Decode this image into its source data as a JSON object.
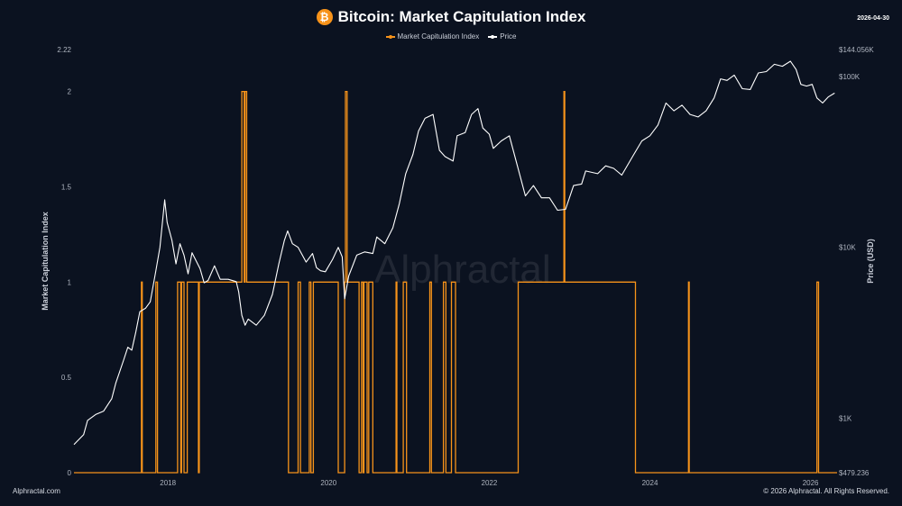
{
  "header": {
    "title": "Bitcoin: Market Capitulation Index",
    "icon": "bitcoin-icon",
    "icon_glyph": "₿",
    "date": "2026-04-30"
  },
  "legend": {
    "items": [
      {
        "label": "Market Capitulation Index",
        "color": "#f7931a"
      },
      {
        "label": "Price",
        "color": "#ffffff"
      }
    ]
  },
  "footer": {
    "left": "Alphractal.com",
    "right": "© 2026 Alphractal. All Rights Reserved."
  },
  "watermark": "Alphractal",
  "colors": {
    "background": "#0b1220",
    "index": "#f7931a",
    "price": "#ffffff"
  },
  "chart_data": {
    "type": "line",
    "title": "Bitcoin: Market Capitulation Index",
    "ylabel_left": "Market Capitulation Index",
    "ylabel_right": "Price (USD)",
    "x_ticks": [
      "2018",
      "2020",
      "2022",
      "2024",
      "2026"
    ],
    "x_range": [
      2016.83,
      2026.33
    ],
    "ylim_left": [
      0,
      2.22
    ],
    "y_ticks_left": [
      "0",
      "0.5",
      "1",
      "1.5",
      "2",
      "2.22"
    ],
    "ylim_right": [
      479.236,
      144056
    ],
    "y_scale_right": "log",
    "y_ticks_right": [
      "$479.236",
      "$1K",
      "$10K",
      "$100K",
      "$144.056K"
    ],
    "grid": false,
    "legend_position": "top-center",
    "series": [
      {
        "name": "Market Capitulation Index",
        "color": "#f7931a",
        "step": true,
        "points": [
          [
            2016.83,
            0
          ],
          [
            2017.67,
            0
          ],
          [
            2017.67,
            1
          ],
          [
            2017.68,
            1
          ],
          [
            2017.68,
            0
          ],
          [
            2017.85,
            0
          ],
          [
            2017.85,
            1
          ],
          [
            2017.87,
            1
          ],
          [
            2017.87,
            0
          ],
          [
            2018.12,
            0
          ],
          [
            2018.12,
            1
          ],
          [
            2018.16,
            1
          ],
          [
            2018.16,
            0
          ],
          [
            2018.17,
            0
          ],
          [
            2018.17,
            1
          ],
          [
            2018.2,
            1
          ],
          [
            2018.2,
            0
          ],
          [
            2018.24,
            0
          ],
          [
            2018.24,
            1
          ],
          [
            2018.38,
            1
          ],
          [
            2018.38,
            0
          ],
          [
            2018.39,
            0
          ],
          [
            2018.39,
            1
          ],
          [
            2018.92,
            1
          ],
          [
            2018.92,
            2
          ],
          [
            2018.95,
            2
          ],
          [
            2018.95,
            1
          ],
          [
            2018.96,
            1
          ],
          [
            2018.96,
            2
          ],
          [
            2018.98,
            2
          ],
          [
            2018.98,
            1
          ],
          [
            2019.5,
            1
          ],
          [
            2019.5,
            0
          ],
          [
            2019.62,
            0
          ],
          [
            2019.62,
            1
          ],
          [
            2019.65,
            1
          ],
          [
            2019.65,
            0
          ],
          [
            2019.76,
            0
          ],
          [
            2019.76,
            1
          ],
          [
            2019.78,
            1
          ],
          [
            2019.78,
            0
          ],
          [
            2019.81,
            0
          ],
          [
            2019.81,
            1
          ],
          [
            2020.12,
            1
          ],
          [
            2020.12,
            0
          ],
          [
            2020.2,
            0
          ],
          [
            2020.2,
            1
          ],
          [
            2020.21,
            1
          ],
          [
            2020.21,
            2
          ],
          [
            2020.23,
            2
          ],
          [
            2020.23,
            1
          ],
          [
            2020.38,
            1
          ],
          [
            2020.38,
            0
          ],
          [
            2020.41,
            0
          ],
          [
            2020.41,
            1
          ],
          [
            2020.43,
            1
          ],
          [
            2020.43,
            0
          ],
          [
            2020.44,
            0
          ],
          [
            2020.44,
            1
          ],
          [
            2020.48,
            1
          ],
          [
            2020.48,
            0
          ],
          [
            2020.5,
            0
          ],
          [
            2020.5,
            1
          ],
          [
            2020.55,
            1
          ],
          [
            2020.55,
            0
          ],
          [
            2020.84,
            0
          ],
          [
            2020.84,
            1
          ],
          [
            2020.85,
            1
          ],
          [
            2020.85,
            0
          ],
          [
            2020.93,
            0
          ],
          [
            2020.93,
            1
          ],
          [
            2020.97,
            1
          ],
          [
            2020.97,
            0
          ],
          [
            2021.26,
            0
          ],
          [
            2021.26,
            1
          ],
          [
            2021.28,
            1
          ],
          [
            2021.28,
            0
          ],
          [
            2021.43,
            0
          ],
          [
            2021.43,
            1
          ],
          [
            2021.46,
            1
          ],
          [
            2021.46,
            0
          ],
          [
            2021.53,
            0
          ],
          [
            2021.53,
            1
          ],
          [
            2021.58,
            1
          ],
          [
            2021.58,
            0
          ],
          [
            2022.36,
            0
          ],
          [
            2022.36,
            1
          ],
          [
            2022.93,
            1
          ],
          [
            2022.93,
            2
          ],
          [
            2022.94,
            2
          ],
          [
            2022.94,
            1
          ],
          [
            2023.82,
            1
          ],
          [
            2023.82,
            0
          ],
          [
            2024.48,
            0
          ],
          [
            2024.48,
            1
          ],
          [
            2024.49,
            1
          ],
          [
            2024.49,
            0
          ],
          [
            2026.08,
            0
          ],
          [
            2026.08,
            1
          ],
          [
            2026.1,
            1
          ],
          [
            2026.1,
            0
          ],
          [
            2026.33,
            0
          ]
        ]
      },
      {
        "name": "Price",
        "color": "#ffffff",
        "points": [
          [
            2016.83,
            700
          ],
          [
            2016.95,
            800
          ],
          [
            2017.0,
            970
          ],
          [
            2017.1,
            1050
          ],
          [
            2017.2,
            1100
          ],
          [
            2017.3,
            1300
          ],
          [
            2017.35,
            1600
          ],
          [
            2017.45,
            2200
          ],
          [
            2017.5,
            2600
          ],
          [
            2017.55,
            2500
          ],
          [
            2017.6,
            3200
          ],
          [
            2017.65,
            4200
          ],
          [
            2017.72,
            4400
          ],
          [
            2017.78,
            4800
          ],
          [
            2017.85,
            7300
          ],
          [
            2017.9,
            10000
          ],
          [
            2017.96,
            19000
          ],
          [
            2017.99,
            14000
          ],
          [
            2018.05,
            11000
          ],
          [
            2018.1,
            8000
          ],
          [
            2018.15,
            10500
          ],
          [
            2018.2,
            9000
          ],
          [
            2018.25,
            7000
          ],
          [
            2018.3,
            9300
          ],
          [
            2018.4,
            7500
          ],
          [
            2018.45,
            6200
          ],
          [
            2018.5,
            6400
          ],
          [
            2018.58,
            7800
          ],
          [
            2018.65,
            6500
          ],
          [
            2018.75,
            6500
          ],
          [
            2018.85,
            6300
          ],
          [
            2018.88,
            5500
          ],
          [
            2018.92,
            4000
          ],
          [
            2018.96,
            3500
          ],
          [
            2019.0,
            3800
          ],
          [
            2019.1,
            3500
          ],
          [
            2019.2,
            4000
          ],
          [
            2019.3,
            5300
          ],
          [
            2019.38,
            8000
          ],
          [
            2019.45,
            11000
          ],
          [
            2019.49,
            12500
          ],
          [
            2019.55,
            10500
          ],
          [
            2019.62,
            10000
          ],
          [
            2019.72,
            8200
          ],
          [
            2019.8,
            9200
          ],
          [
            2019.85,
            7600
          ],
          [
            2019.9,
            7300
          ],
          [
            2019.96,
            7200
          ],
          [
            2020.05,
            8500
          ],
          [
            2020.12,
            10000
          ],
          [
            2020.17,
            8800
          ],
          [
            2020.2,
            5000
          ],
          [
            2020.25,
            6800
          ],
          [
            2020.35,
            9000
          ],
          [
            2020.45,
            9400
          ],
          [
            2020.55,
            9200
          ],
          [
            2020.6,
            11500
          ],
          [
            2020.7,
            10500
          ],
          [
            2020.8,
            13000
          ],
          [
            2020.88,
            18000
          ],
          [
            2020.96,
            27000
          ],
          [
            2021.05,
            35000
          ],
          [
            2021.12,
            48000
          ],
          [
            2021.2,
            57000
          ],
          [
            2021.3,
            60000
          ],
          [
            2021.38,
            37000
          ],
          [
            2021.45,
            34000
          ],
          [
            2021.55,
            32000
          ],
          [
            2021.6,
            45000
          ],
          [
            2021.7,
            47000
          ],
          [
            2021.78,
            60000
          ],
          [
            2021.86,
            65000
          ],
          [
            2021.92,
            50000
          ],
          [
            2022.0,
            46000
          ],
          [
            2022.05,
            38000
          ],
          [
            2022.15,
            42000
          ],
          [
            2022.25,
            45000
          ],
          [
            2022.35,
            30000
          ],
          [
            2022.45,
            20000
          ],
          [
            2022.55,
            23000
          ],
          [
            2022.65,
            19500
          ],
          [
            2022.75,
            19500
          ],
          [
            2022.85,
            16500
          ],
          [
            2022.95,
            16700
          ],
          [
            2023.05,
            23000
          ],
          [
            2023.15,
            23500
          ],
          [
            2023.2,
            28000
          ],
          [
            2023.35,
            27000
          ],
          [
            2023.45,
            30000
          ],
          [
            2023.55,
            29000
          ],
          [
            2023.65,
            26500
          ],
          [
            2023.8,
            35000
          ],
          [
            2023.9,
            42000
          ],
          [
            2024.0,
            45000
          ],
          [
            2024.1,
            52000
          ],
          [
            2024.2,
            70000
          ],
          [
            2024.3,
            63000
          ],
          [
            2024.4,
            68000
          ],
          [
            2024.5,
            60000
          ],
          [
            2024.6,
            58000
          ],
          [
            2024.7,
            63000
          ],
          [
            2024.8,
            75000
          ],
          [
            2024.88,
            97000
          ],
          [
            2024.96,
            95000
          ],
          [
            2025.05,
            102000
          ],
          [
            2025.15,
            85000
          ],
          [
            2025.25,
            84000
          ],
          [
            2025.35,
            105000
          ],
          [
            2025.45,
            107000
          ],
          [
            2025.55,
            118000
          ],
          [
            2025.65,
            115000
          ],
          [
            2025.75,
            123000
          ],
          [
            2025.82,
            110000
          ],
          [
            2025.88,
            90000
          ],
          [
            2025.95,
            88000
          ],
          [
            2026.02,
            90000
          ],
          [
            2026.08,
            75000
          ],
          [
            2026.15,
            70000
          ],
          [
            2026.22,
            76000
          ],
          [
            2026.3,
            80000
          ]
        ]
      }
    ]
  }
}
